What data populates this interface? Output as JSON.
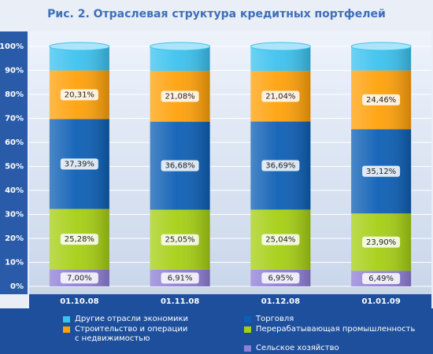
{
  "chart_data": {
    "type": "stacked_bar",
    "title": "Рис. 2.   Отраслевая структура кредитных портфелей",
    "categories": [
      "01.10.08",
      "01.11.08",
      "01.12.08",
      "01.01.09"
    ],
    "series": [
      {
        "name": "Сельское хозяйство",
        "color": "#8f7fd6",
        "values": [
          7.0,
          6.91,
          6.95,
          6.49
        ],
        "value_labels": [
          "7,00%",
          "6,91%",
          "6,95%",
          "6,49%"
        ]
      },
      {
        "name": "Перерабатывающая промышленность",
        "color": "#a6cf14",
        "values": [
          25.28,
          25.05,
          25.04,
          23.9
        ],
        "value_labels": [
          "25,28%",
          "25,05%",
          "25,04%",
          "23,90%"
        ]
      },
      {
        "name": "Торговля",
        "color": "#0d5fb5",
        "values": [
          37.39,
          36.68,
          36.69,
          35.12
        ],
        "value_labels": [
          "37,39%",
          "36,68%",
          "36,69%",
          "35,12%"
        ]
      },
      {
        "name": "Строительство и операции с недвижимостью",
        "color": "#ffa10a",
        "values": [
          20.31,
          21.08,
          21.04,
          24.46
        ],
        "value_labels": [
          "20,31%",
          "21,08%",
          "21,04%",
          "24,46%"
        ]
      },
      {
        "name": "Другие отрасли экономики",
        "color": "#3cc2ef",
        "values": [
          10.02,
          10.28,
          10.28,
          10.03
        ]
      }
    ],
    "ylim": [
      0,
      100
    ],
    "yticks": [
      {
        "value": 0,
        "label": "0%"
      },
      {
        "value": 10,
        "label": "10%"
      },
      {
        "value": 20,
        "label": "20%"
      },
      {
        "value": 30,
        "label": "30%"
      },
      {
        "value": 40,
        "label": "40%"
      },
      {
        "value": 50,
        "label": "50%"
      },
      {
        "value": 60,
        "label": "60%"
      },
      {
        "value": 70,
        "label": "70%"
      },
      {
        "value": 80,
        "label": "80%"
      },
      {
        "value": 90,
        "label": "90%"
      },
      {
        "value": 100,
        "label": "100%"
      }
    ],
    "grid": true
  }
}
